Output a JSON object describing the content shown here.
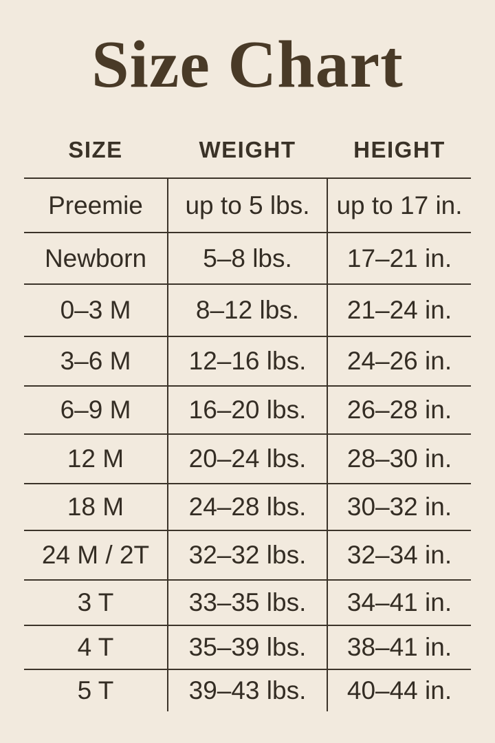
{
  "page": {
    "background_color": "#f2eade",
    "ink_color": "#3b3329",
    "title_color": "#493a27"
  },
  "title": {
    "text": "Size Chart"
  },
  "chart_data": {
    "type": "table",
    "title": "Size Chart",
    "columns": [
      "SIZE",
      "WEIGHT",
      "HEIGHT"
    ],
    "rows": [
      {
        "size": "Preemie",
        "weight": "up to 5 lbs.",
        "height": "up to 17 in."
      },
      {
        "size": "Newborn",
        "weight": "5–8 lbs.",
        "height": "17–21 in."
      },
      {
        "size": "0–3 M",
        "weight": "8–12 lbs.",
        "height": "21–24 in."
      },
      {
        "size": "3–6 M",
        "weight": "12–16 lbs.",
        "height": "24–26 in."
      },
      {
        "size": "6–9 M",
        "weight": "16–20 lbs.",
        "height": "26–28 in."
      },
      {
        "size": "12 M",
        "weight": "20–24 lbs.",
        "height": "28–30 in."
      },
      {
        "size": "18 M",
        "weight": "24–28 lbs.",
        "height": "30–32 in."
      },
      {
        "size": "24 M / 2T",
        "weight": "32–32 lbs.",
        "height": "32–34 in."
      },
      {
        "size": "3 T",
        "weight": "33–35 lbs.",
        "height": "34–41 in."
      },
      {
        "size": "4 T",
        "weight": "35–39 lbs.",
        "height": "38–41 in."
      },
      {
        "size": "5 T",
        "weight": "39–43 lbs.",
        "height": "40–44 in."
      }
    ],
    "layout": {
      "grid": "horizontal rules + interior vertical dividers, no outer side borders, no bottom rule"
    }
  }
}
